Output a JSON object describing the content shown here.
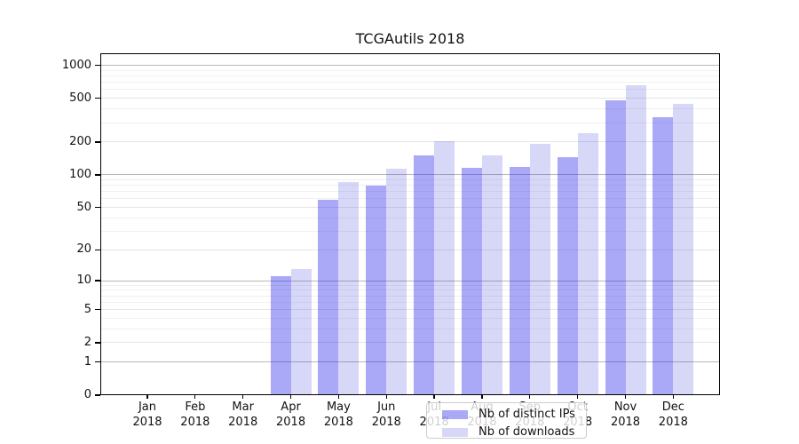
{
  "title": "TCGAutils 2018",
  "chart_data": {
    "type": "bar",
    "title": "TCGAutils 2018",
    "categories": [
      "Jan",
      "Feb",
      "Mar",
      "Apr",
      "May",
      "Jun",
      "Jul",
      "Aug",
      "Sep",
      "Oct",
      "Nov",
      "Dec"
    ],
    "category_year": "2018",
    "series": [
      {
        "name": "Nb of distinct IPs",
        "key": "distinct-ips",
        "color": "rgba(40,40,235,0.40)",
        "color_hex": "#a9a9f7",
        "values": [
          0,
          0,
          0,
          11,
          59,
          79,
          151,
          115,
          119,
          146,
          476,
          334
        ]
      },
      {
        "name": "Nb of downloads",
        "key": "downloads",
        "color": "rgba(40,40,220,0.19)",
        "color_hex": "#d6d6f8",
        "values": [
          0,
          0,
          0,
          13,
          86,
          113,
          205,
          151,
          192,
          240,
          657,
          447
        ]
      }
    ],
    "yscale": "log1p",
    "ylim": [
      0,
      1330
    ],
    "yticks": [
      0,
      1,
      2,
      5,
      10,
      20,
      50,
      100,
      200,
      500,
      1000
    ],
    "grid": "horizontal",
    "legend_position": "lower center",
    "axis_color": "#000000",
    "gridline_decade_color": "#b8b8b8",
    "gridline_labeled_color": "#e5e5e5",
    "gridline_minor_color": "#f0f0f0"
  }
}
